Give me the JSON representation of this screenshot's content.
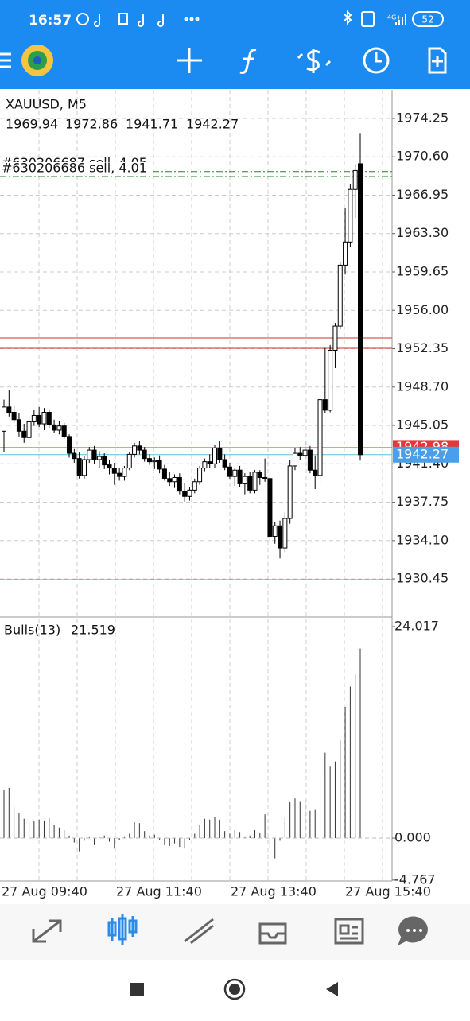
{
  "status_bar": {
    "time": "16:57",
    "network": "4G+",
    "battery": "52"
  },
  "chart_data": {
    "type": "candlestick",
    "symbol": "XAUUSD, M5",
    "ylim": [
      1926.9,
      1976.97
    ],
    "yticks": [
      1974.25,
      {
        "value": 1970.6,
        "label": "1970.60"
      },
      1966.95,
      {
        "value": 1963.3,
        "label": "1963.30"
      },
      1959.65,
      {
        "value": 1956.0,
        "label": "1956.00"
      },
      1952.35,
      {
        "value": 1948.7,
        "label": "1948.70"
      },
      1945.05,
      {
        "value": 1941.4,
        "label": "1941.40"
      },
      1937.75,
      {
        "value": 1934.1,
        "label": "1934.10"
      },
      1930.45
    ],
    "xtick_labels": [
      "27 Aug 09:40",
      "27 Aug 11:40",
      "27 Aug 13:40",
      "27 Aug 15:40"
    ],
    "grid": true,
    "open": [
      1944.5,
      1946.8,
      1946.3,
      1945.6,
      1944.5,
      1943.9,
      1945.4,
      1946.0,
      1945.2,
      1946.3,
      1945.1,
      1944.6,
      1945.0,
      1944.0,
      1942.4,
      1941.9,
      1940.3,
      1941.8,
      1942.7,
      1941.8,
      1942.1,
      1941.3,
      1941.0,
      1940.5,
      1940.2,
      1941.0,
      1942.3,
      1943.1,
      1942.7,
      1941.9,
      1941.6,
      1941.7,
      1940.9,
      1940.0,
      1939.7,
      1940.1,
      1938.8,
      1938.3,
      1938.9,
      1939.7,
      1941.0,
      1941.6,
      1941.4,
      1942.9,
      1941.8,
      1941.1,
      1940.2,
      1940.8,
      1939.5,
      1940.2,
      1938.9,
      1940.6,
      1940.1,
      1940.0,
      1934.5,
      1935.5,
      1933.4,
      1936.2,
      1941.2,
      1942.4,
      1942.2,
      1942.7,
      1940.8,
      1940.3,
      1947.5,
      1946.5,
      1952.2,
      1954.5,
      1960.3,
      1962.5,
      1967.5,
      1969.94
    ],
    "high": [
      1947.5,
      1948.4,
      1947.0,
      1946.2,
      1945.2,
      1945.8,
      1946.5,
      1946.8,
      1946.7,
      1946.6,
      1945.6,
      1945.5,
      1945.3,
      1944.2,
      1942.8,
      1942.5,
      1942.1,
      1943.0,
      1943.1,
      1942.6,
      1942.4,
      1941.8,
      1941.5,
      1941.0,
      1941.2,
      1942.5,
      1943.4,
      1943.6,
      1943.0,
      1942.3,
      1942.0,
      1942.2,
      1941.3,
      1940.6,
      1940.4,
      1940.5,
      1939.6,
      1939.2,
      1940.0,
      1941.2,
      1941.9,
      1942.3,
      1943.2,
      1943.6,
      1942.3,
      1941.5,
      1941.0,
      1941.2,
      1940.5,
      1940.6,
      1940.8,
      1940.8,
      1941.9,
      1940.5,
      1935.9,
      1936.0,
      1936.8,
      1941.8,
      1942.9,
      1943.0,
      1943.6,
      1943.1,
      1942.2,
      1948.1,
      1952.4,
      1952.7,
      1954.8,
      1960.6,
      1965.7,
      1968.0,
      1969.9,
      1972.86
    ],
    "low": [
      1942.5,
      1945.9,
      1945.3,
      1944.0,
      1943.4,
      1943.5,
      1945.0,
      1944.9,
      1944.6,
      1944.8,
      1944.3,
      1944.2,
      1943.8,
      1942.0,
      1941.5,
      1940.0,
      1940.0,
      1941.5,
      1941.4,
      1941.0,
      1940.9,
      1940.4,
      1939.4,
      1939.8,
      1939.8,
      1940.8,
      1942.0,
      1942.3,
      1941.6,
      1941.3,
      1940.9,
      1940.5,
      1939.8,
      1939.3,
      1939.1,
      1938.5,
      1937.8,
      1937.9,
      1938.6,
      1939.4,
      1940.7,
      1941.0,
      1941.0,
      1941.5,
      1940.8,
      1939.9,
      1939.3,
      1939.2,
      1938.5,
      1938.6,
      1938.6,
      1939.4,
      1939.7,
      1934.0,
      1933.8,
      1932.4,
      1933.0,
      1935.7,
      1940.8,
      1941.8,
      1941.7,
      1940.5,
      1939.0,
      1939.5,
      1946.2,
      1946.3,
      1950.5,
      1954.2,
      1959.4,
      1962.0,
      1964.8,
      1941.71
    ],
    "close": [
      1946.8,
      1946.3,
      1945.6,
      1944.5,
      1943.9,
      1945.4,
      1946.0,
      1945.2,
      1946.3,
      1945.1,
      1944.6,
      1945.0,
      1944.0,
      1942.4,
      1941.9,
      1940.3,
      1941.8,
      1942.7,
      1941.8,
      1942.1,
      1941.3,
      1941.0,
      1940.5,
      1940.2,
      1941.0,
      1942.3,
      1943.1,
      1942.7,
      1941.9,
      1941.6,
      1941.7,
      1940.9,
      1940.0,
      1939.7,
      1940.1,
      1938.8,
      1938.3,
      1938.9,
      1939.7,
      1941.0,
      1941.6,
      1941.4,
      1942.9,
      1941.8,
      1941.1,
      1940.2,
      1940.8,
      1939.5,
      1940.2,
      1938.9,
      1940.6,
      1940.1,
      1940.0,
      1934.5,
      1935.5,
      1933.4,
      1936.2,
      1941.2,
      1942.4,
      1942.2,
      1942.7,
      1940.8,
      1940.3,
      1947.5,
      1946.5,
      1952.2,
      1954.5,
      1960.3,
      1962.5,
      1967.5,
      1969.3,
      1942.27
    ],
    "levels": [
      {
        "value": 1953.37,
        "color": "#d32f2f"
      },
      {
        "value": 1952.39,
        "color": "#d32f2f"
      },
      {
        "value": 1942.93,
        "color": "#d32f2f"
      },
      {
        "value": 1930.37,
        "color": "#d32f2f"
      }
    ],
    "orders": [
      {
        "label": "#630206687 sell, 4.05",
        "price": 1969.2,
        "color": "#2e7d32"
      },
      {
        "label": "#630206686 sell, 4.01",
        "price": 1968.73,
        "color": "#2e7d32"
      }
    ],
    "ask": 1942.98,
    "bid": 1942.27,
    "indicator": {
      "type": "histogram",
      "name": "Bulls(13)",
      "ylim": [
        -4.87,
        24.92
      ],
      "yticks": [
        24.017,
        {
          "value": 0,
          "label": "0.000"
        },
        -4.767
      ],
      "values": [
        5.5,
        5.7,
        3.5,
        2.8,
        2.2,
        2.0,
        1.9,
        2.1,
        2.0,
        2.3,
        1.5,
        1.2,
        0.9,
        0.3,
        -0.5,
        -1.5,
        -0.3,
        0.2,
        -0.8,
        0.1,
        0.3,
        -0.4,
        -1.2,
        -0.2,
        0.2,
        0.5,
        1.8,
        1.7,
        0.8,
        0.3,
        0.4,
        -0.2,
        -0.8,
        -0.9,
        -0.6,
        -1.0,
        -1.1,
        -0.2,
        0.5,
        1.5,
        2.2,
        2.1,
        2.4,
        2.1,
        0.8,
        0.5,
        0.9,
        0.7,
        0.2,
        0.3,
        0.9,
        0.6,
        2.7,
        -1.1,
        -2.3,
        -0.3,
        2.3,
        4.1,
        4.5,
        4.2,
        4.3,
        3.1,
        3.2,
        7.1,
        9.7,
        8.2,
        8.7,
        11.1,
        14.9,
        17.2,
        18.6,
        21.519
      ]
    }
  }
}
